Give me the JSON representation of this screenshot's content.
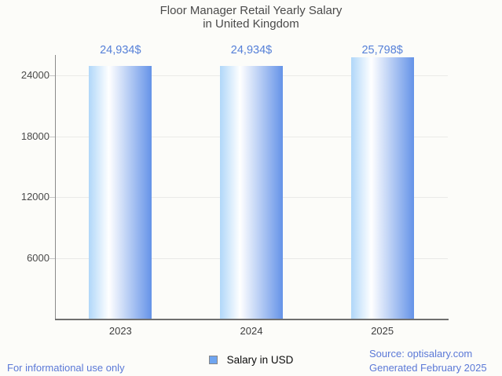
{
  "header": {
    "title_line1": "Floor Manager Retail Yearly Salary",
    "title_line2": "in United Kingdom"
  },
  "chart_data": {
    "type": "bar",
    "title": "Floor Manager Retail Yearly Salary in United Kingdom",
    "categories": [
      "2023",
      "2024",
      "2025"
    ],
    "series": [
      {
        "name": "Salary in USD",
        "values": [
          24934,
          24934,
          25798
        ]
      }
    ],
    "value_labels": [
      "24,934$",
      "24,934$",
      "25,798$"
    ],
    "xlabel": "",
    "ylabel": "",
    "y_ticks": [
      6000,
      12000,
      18000,
      24000
    ],
    "ylim": [
      0,
      26000
    ],
    "grid": true,
    "legend_position": "bottom",
    "colors": {
      "bar_gradient_left": "#b0d7f9",
      "bar_gradient_mid": "#ffffff",
      "bar_gradient_right": "#6593e8",
      "value_label": "#5680d8",
      "legend_swatch": "#6fa5f0"
    }
  },
  "legend": {
    "label": "Salary in USD"
  },
  "footer": {
    "disclaimer": "For informational use only",
    "source": "Source: optisalary.com",
    "generated": "Generated February 2025",
    "link_color": "#5b79d7"
  }
}
